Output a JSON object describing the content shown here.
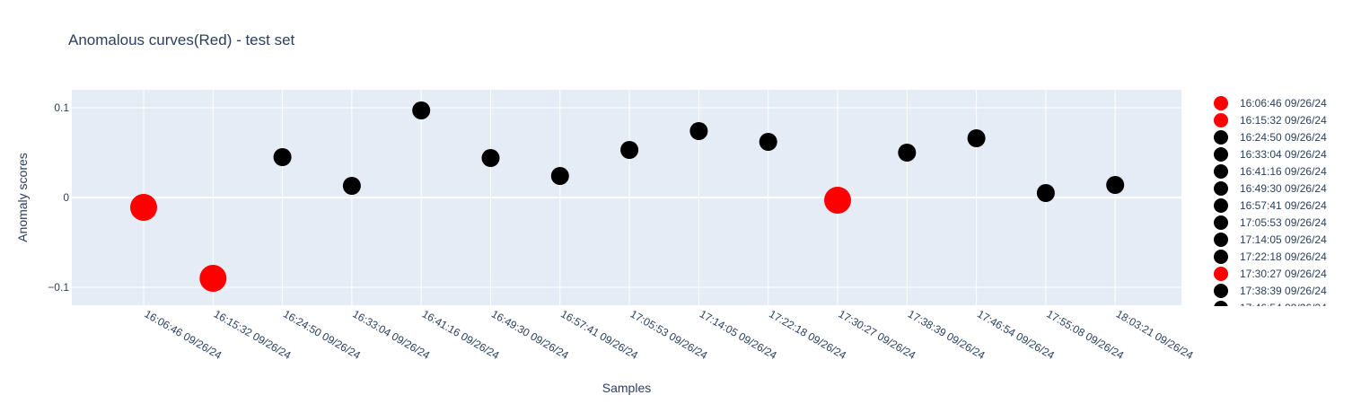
{
  "chart_data": {
    "type": "scatter",
    "title": "Anomalous curves(Red) - test set",
    "xlabel": "Samples",
    "ylabel": "Anomaly scores",
    "categories": [
      "16:06:46 09/26/24",
      "16:15:32 09/26/24",
      "16:24:50 09/26/24",
      "16:33:04 09/26/24",
      "16:41:16 09/26/24",
      "16:49:30 09/26/24",
      "16:57:41 09/26/24",
      "17:05:53 09/26/24",
      "17:14:05 09/26/24",
      "17:22:18 09/26/24",
      "17:30:27 09/26/24",
      "17:38:39 09/26/24",
      "17:46:54 09/26/24",
      "17:55:08 09/26/24",
      "18:03:21 09/26/24"
    ],
    "values": [
      -0.011,
      -0.09,
      0.045,
      0.013,
      0.097,
      0.044,
      0.024,
      0.053,
      0.074,
      0.062,
      -0.003,
      0.05,
      0.066,
      0.005,
      0.014
    ],
    "anomalous": [
      true,
      true,
      false,
      false,
      false,
      false,
      false,
      false,
      false,
      false,
      true,
      false,
      false,
      false,
      false
    ],
    "ylim": [
      -0.12,
      0.12
    ],
    "yticks": [
      -0.1,
      0,
      0.1
    ],
    "ytick_labels": [
      "−0.1",
      "0",
      "0.1"
    ],
    "colors": {
      "normal": "#000000",
      "anomalous": "#ff0000",
      "plot_bg": "#e5ecf6",
      "grid": "#ffffff",
      "text": "#2a3f5f"
    },
    "grid": true,
    "legend": {
      "placement": "right",
      "entries": [
        "16:06:46 09/26/24",
        "16:15:32 09/26/24",
        "16:24:50 09/26/24",
        "16:33:04 09/26/24",
        "16:41:16 09/26/24",
        "16:49:30 09/26/24",
        "16:57:41 09/26/24",
        "17:05:53 09/26/24",
        "17:14:05 09/26/24",
        "17:22:18 09/26/24",
        "17:30:27 09/26/24",
        "17:38:39 09/26/24"
      ]
    }
  }
}
